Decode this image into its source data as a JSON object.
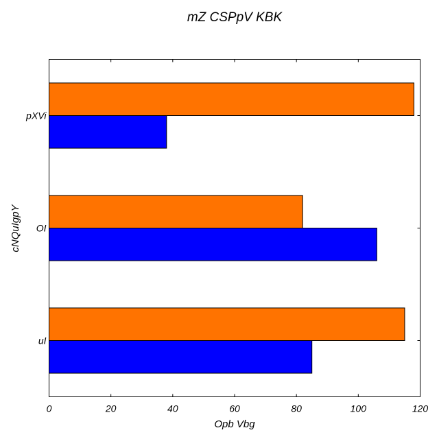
{
  "chart_data": {
    "type": "bar",
    "orientation": "horizontal",
    "title": "mZ CSPpV KBK",
    "xlabel": "Opb Vbg",
    "ylabel": "cNQuIgpY",
    "categories": [
      "uI",
      "OI",
      "pXVi"
    ],
    "series": [
      {
        "values": [
          85,
          106,
          38
        ],
        "color": "#0000ff"
      },
      {
        "values": [
          115,
          82,
          118
        ],
        "color": "#ff7300"
      }
    ],
    "xlim": [
      0,
      120
    ],
    "xticks": [
      "0",
      "20",
      "40",
      "60",
      "80",
      "100",
      "120"
    ],
    "grid": false,
    "legend": "none"
  }
}
